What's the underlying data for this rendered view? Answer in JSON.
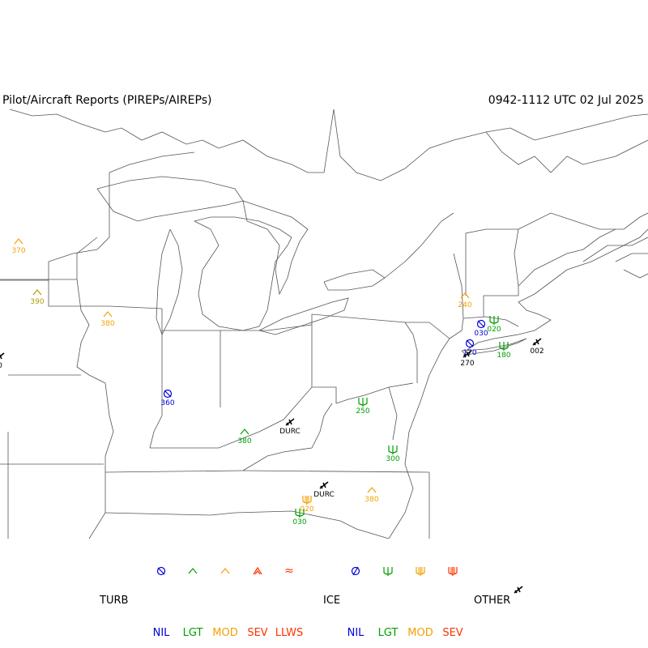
{
  "header": {
    "title": "Pilot/Aircraft Reports (PIREPs/AIREPs)",
    "time_range": "0942-1112 UTC 02 Jul 2025"
  },
  "colors": {
    "nil": "#0000dd",
    "lgt": "#00a000",
    "mod": "#f5a000",
    "sev": "#ff3300",
    "llws": "#ff3300",
    "wrong_mod_olive": "#b0a000",
    "map_lines": "#555555",
    "other": "#000000"
  },
  "reports": [
    {
      "type": "turb",
      "intensity": "mod",
      "altitude": "370"
    },
    {
      "type": "turb",
      "intensity": "mod_olive",
      "altitude": "390"
    },
    {
      "type": "turb",
      "intensity": "mod",
      "altitude": "380"
    },
    {
      "type": "turb",
      "intensity": "nil",
      "altitude": "360"
    },
    {
      "type": "turb",
      "intensity": "lgt",
      "altitude": "380"
    },
    {
      "type": "other",
      "intensity": "other",
      "altitude": "DURC"
    },
    {
      "type": "ice",
      "intensity": "lgt",
      "altitude": "250"
    },
    {
      "type": "ice",
      "intensity": "lgt",
      "altitude": "300"
    },
    {
      "type": "turb",
      "intensity": "mod",
      "altitude": "380"
    },
    {
      "type": "other",
      "intensity": "other",
      "altitude": "DURC"
    },
    {
      "type": "ice",
      "intensity": "mod",
      "altitude": "020"
    },
    {
      "type": "ice",
      "intensity": "lgt",
      "altitude": "030"
    },
    {
      "type": "turb",
      "intensity": "mod",
      "altitude": "240"
    },
    {
      "type": "turb",
      "intensity": "nil",
      "altitude": "030"
    },
    {
      "type": "ice",
      "intensity": "lgt",
      "altitude": "020"
    },
    {
      "type": "turb",
      "intensity": "nil",
      "altitude": "170"
    },
    {
      "type": "other",
      "intensity": "other",
      "altitude": "270"
    },
    {
      "type": "ice",
      "intensity": "lgt",
      "altitude": "180"
    },
    {
      "type": "other",
      "intensity": "other",
      "altitude": "002"
    },
    {
      "type": "other",
      "intensity": "other",
      "altitude": "0"
    }
  ],
  "legend": {
    "turb_label": "TURB",
    "ice_label": "ICE",
    "other_label": "OTHER",
    "turb_keys": [
      "NIL",
      "LGT",
      "MOD",
      "SEV",
      "LLWS"
    ],
    "ice_keys": [
      "NIL",
      "LGT",
      "MOD",
      "SEV"
    ]
  }
}
